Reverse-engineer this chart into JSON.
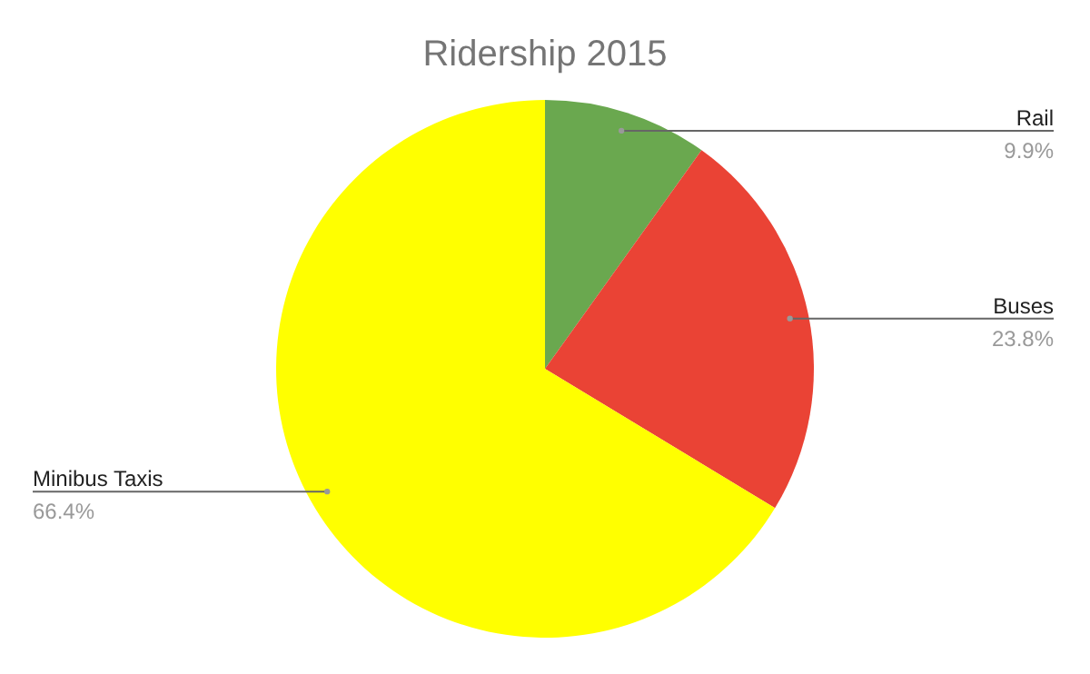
{
  "chart_data": {
    "type": "pie",
    "title": "Ridership 2015",
    "categories": [
      "Rail",
      "Buses",
      "Minibus Taxis"
    ],
    "values": [
      9.9,
      23.8,
      66.4
    ],
    "colors": [
      "#6aa84f",
      "#ea4335",
      "#ffff00"
    ],
    "value_labels": [
      "9.9%",
      "23.8%",
      "66.4%"
    ]
  }
}
